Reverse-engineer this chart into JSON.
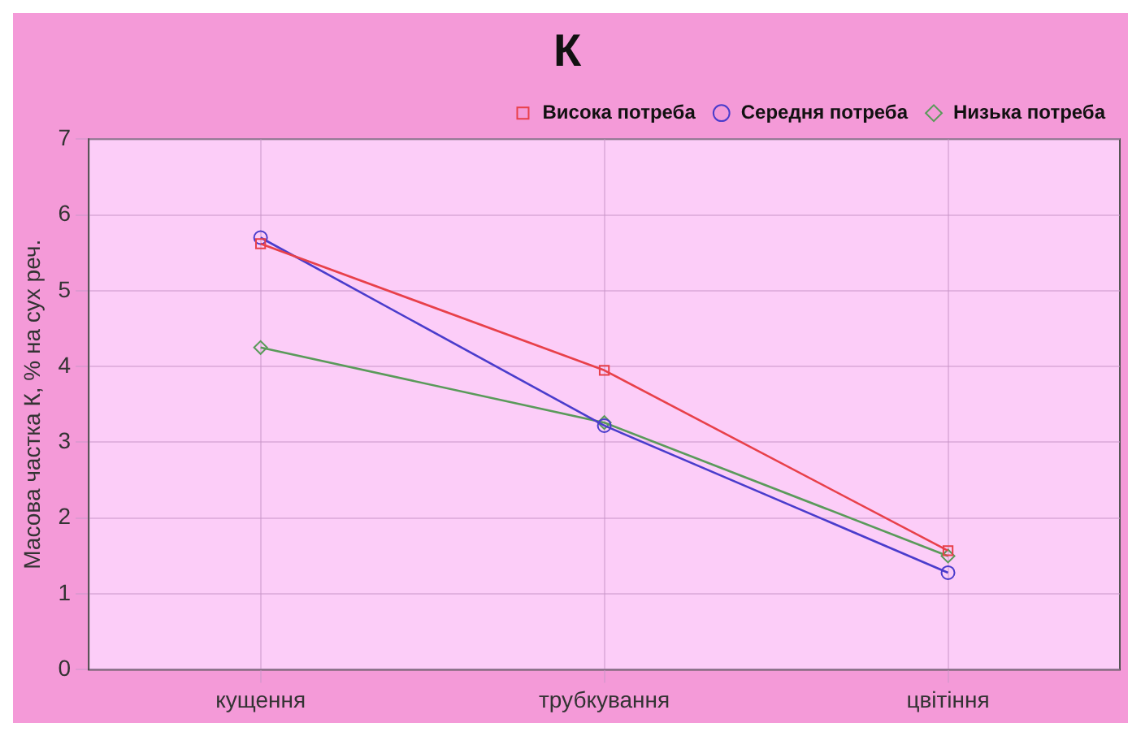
{
  "chart_data": {
    "type": "line",
    "title": "К",
    "ylabel": "Масова частка К, % на сух реч.",
    "categories": [
      "кущення",
      "трубкування",
      "цвітіння"
    ],
    "series": [
      {
        "name": "Висока потреба",
        "color": "#e8404a",
        "marker": "square",
        "values": [
          5.62,
          3.95,
          1.57
        ]
      },
      {
        "name": "Середня потреба",
        "color": "#4a3ccc",
        "marker": "circle",
        "values": [
          5.7,
          3.22,
          1.28
        ]
      },
      {
        "name": "Низька потреба",
        "color": "#5a9a5a",
        "marker": "diamond",
        "values": [
          4.25,
          3.26,
          1.5
        ]
      }
    ],
    "ylim": [
      0,
      7
    ],
    "yticks": [
      0,
      1,
      2,
      3,
      4,
      5,
      6,
      7
    ],
    "grid": true,
    "legend": "top right",
    "line_style": "solid"
  }
}
